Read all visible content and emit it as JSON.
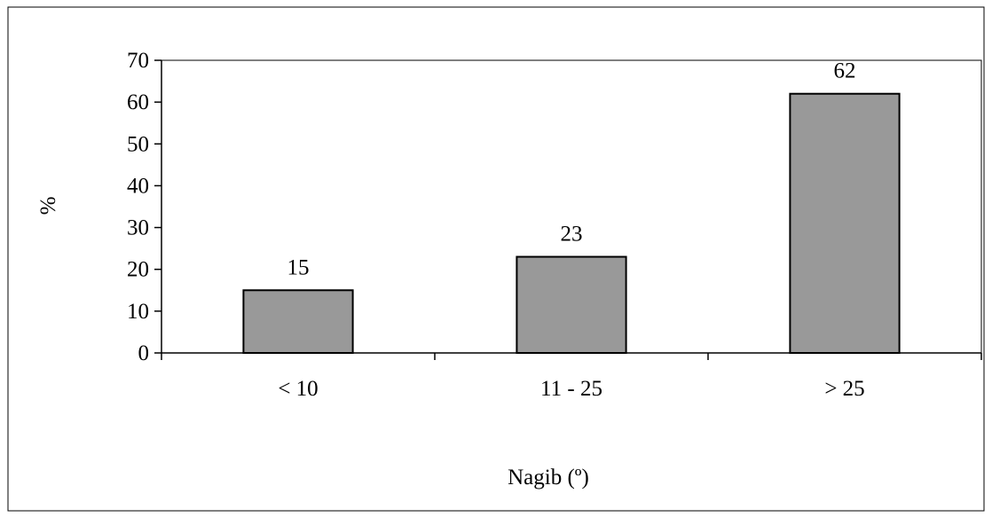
{
  "chart_data": {
    "type": "bar",
    "categories": [
      "< 10",
      "11 - 25",
      "> 25"
    ],
    "values": [
      15,
      23,
      62
    ],
    "xlabel": "Nagib (º)",
    "ylabel": "%",
    "ylim": [
      0,
      70
    ],
    "yticks": [
      0,
      10,
      20,
      30,
      40,
      50,
      60,
      70
    ],
    "grid": false,
    "legend": "none",
    "bar_color": "#999999",
    "bar_edge_color": "#000000",
    "axis_color": "#000000"
  }
}
